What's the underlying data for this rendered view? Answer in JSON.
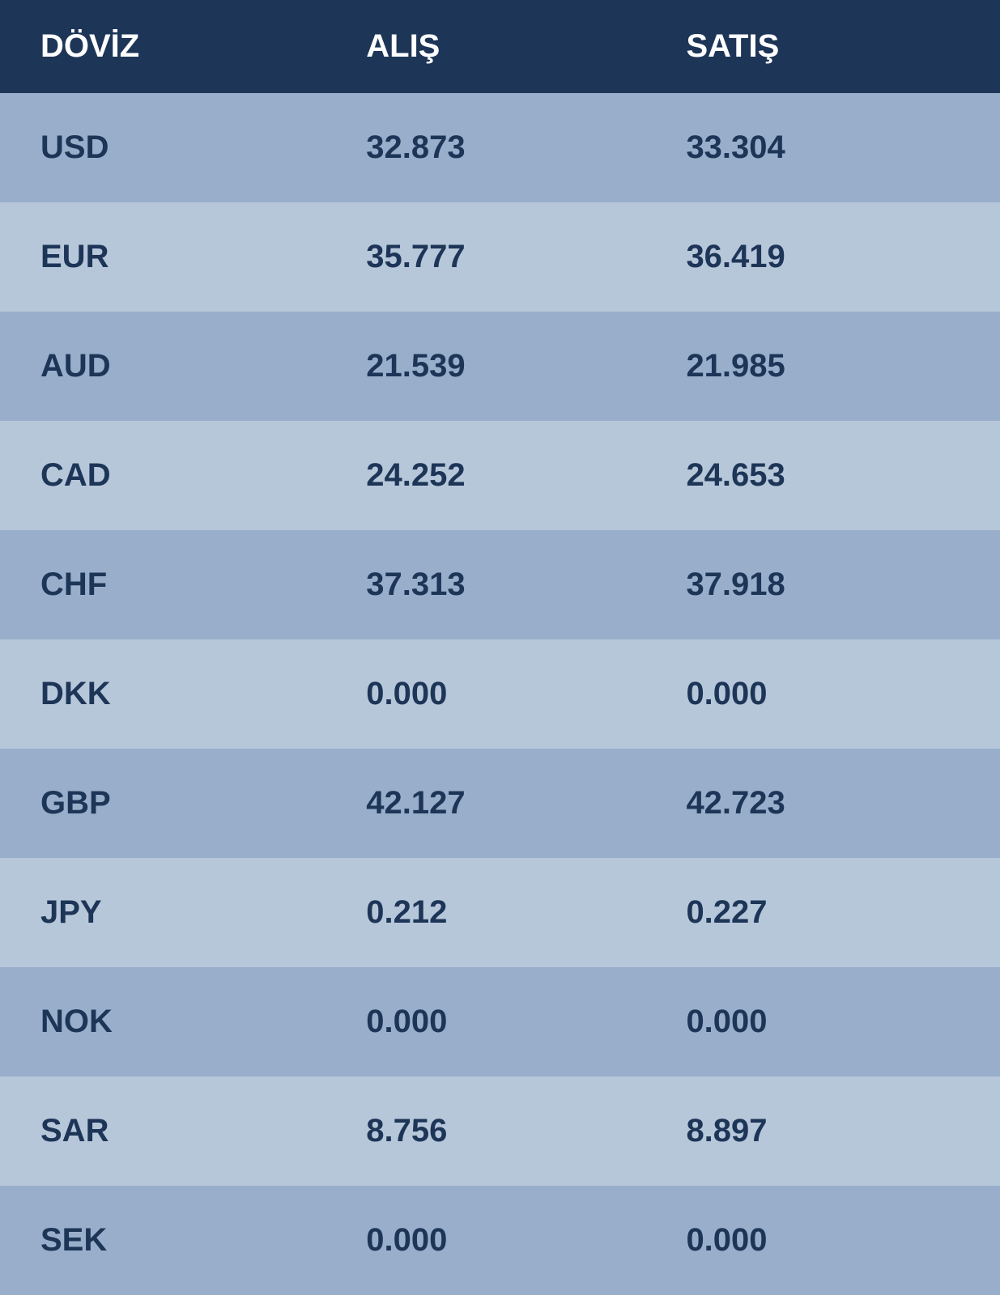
{
  "table": {
    "type": "table",
    "header_background_color": "#1d3557",
    "header_text_color": "#ffffff",
    "row_odd_color": "#98aecb",
    "row_even_color": "#b7c7da",
    "row_text_color": "#1d3557",
    "font_size": 40,
    "font_weight": "bold",
    "columns": [
      {
        "key": "currency",
        "label": "DÖVİZ",
        "width": "35%"
      },
      {
        "key": "buy",
        "label": "ALIŞ",
        "width": "32%"
      },
      {
        "key": "sell",
        "label": "SATIŞ",
        "width": "33%"
      }
    ],
    "rows": [
      {
        "currency": "USD",
        "buy": "32.873",
        "sell": "33.304"
      },
      {
        "currency": "EUR",
        "buy": "35.777",
        "sell": "36.419"
      },
      {
        "currency": "AUD",
        "buy": "21.539",
        "sell": "21.985"
      },
      {
        "currency": "CAD",
        "buy": "24.252",
        "sell": "24.653"
      },
      {
        "currency": "CHF",
        "buy": "37.313",
        "sell": "37.918"
      },
      {
        "currency": "DKK",
        "buy": "0.000",
        "sell": "0.000"
      },
      {
        "currency": "GBP",
        "buy": "42.127",
        "sell": "42.723"
      },
      {
        "currency": "JPY",
        "buy": "0.212",
        "sell": "0.227"
      },
      {
        "currency": "NOK",
        "buy": "0.000",
        "sell": "0.000"
      },
      {
        "currency": "SAR",
        "buy": "8.756",
        "sell": "8.897"
      },
      {
        "currency": "SEK",
        "buy": "0.000",
        "sell": "0.000"
      }
    ]
  }
}
